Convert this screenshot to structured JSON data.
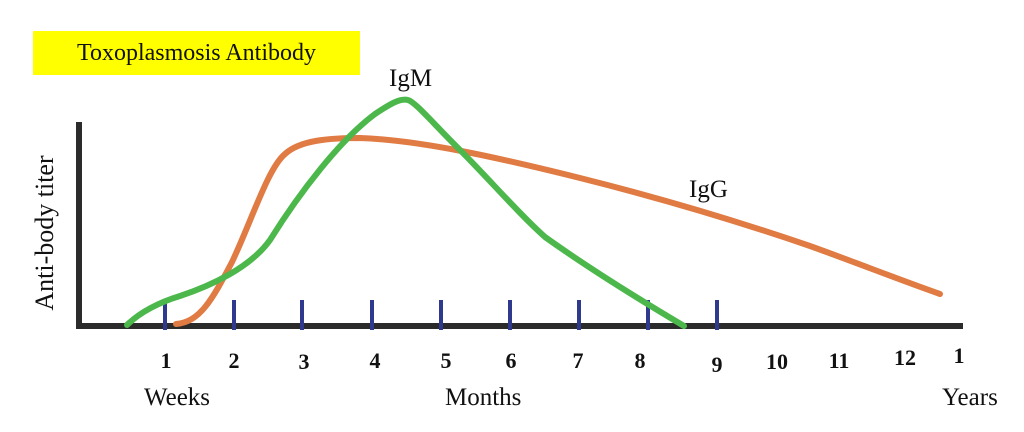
{
  "title": "Toxoplasmosis Antibody",
  "y_axis_label": "Anti-body titer",
  "curve_labels": {
    "igm": "IgM",
    "igg": "IgG"
  },
  "x_ticks": [
    "1",
    "2",
    "3",
    "4",
    "5",
    "6",
    "7",
    "8",
    "9",
    "10",
    "11",
    "12",
    "1"
  ],
  "x_period_labels": {
    "weeks": "Weeks",
    "months": "Months",
    "years": "Years"
  },
  "colors": {
    "title_background": "#ffff00",
    "igm": "#4cb84c",
    "igg": "#e07b43",
    "axis": "#2b2b2b",
    "tick_marks": "#2f3a8f"
  }
}
